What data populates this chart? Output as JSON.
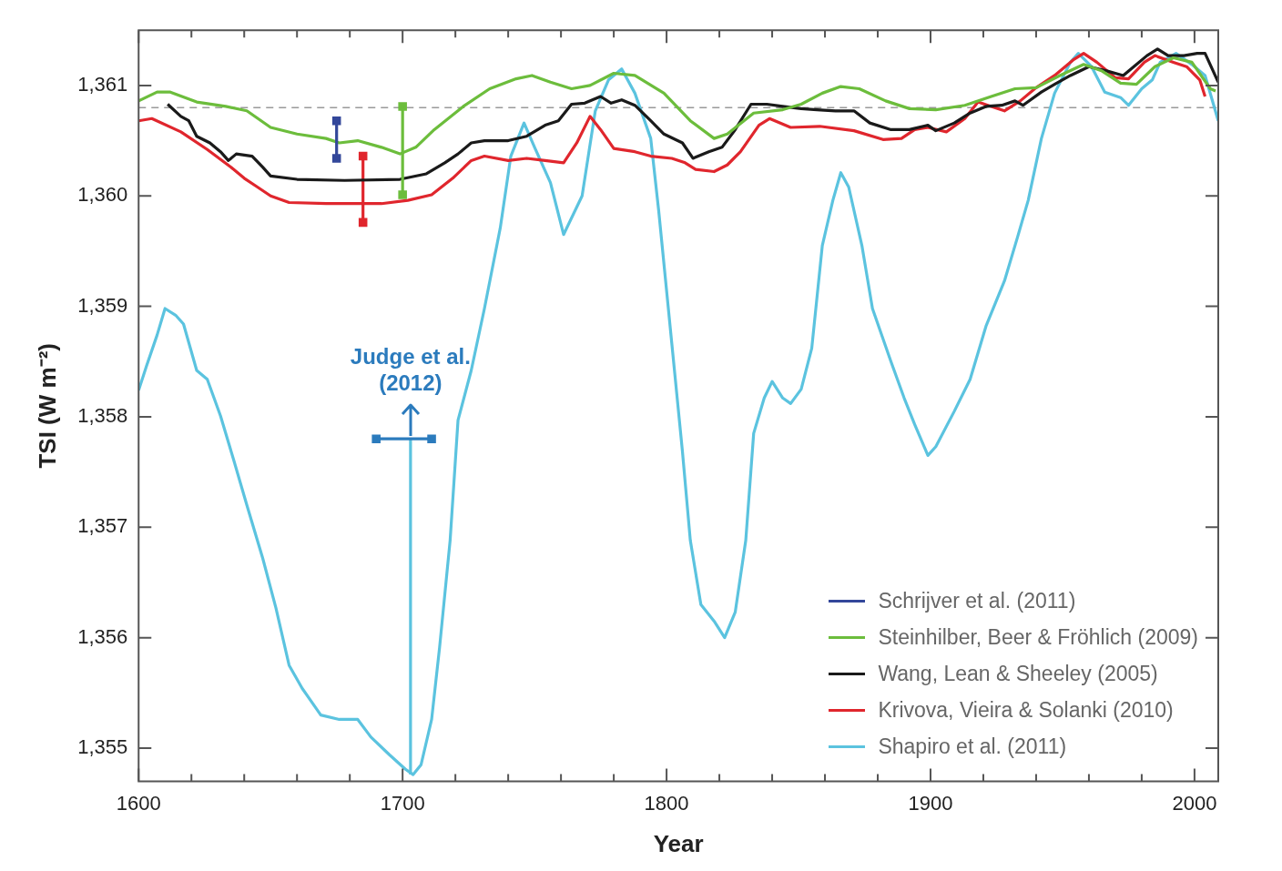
{
  "chart_data": {
    "type": "line",
    "xlabel": "Year",
    "ylabel": "TSI (W m⁻²)",
    "xlim": [
      1600,
      2009
    ],
    "ylim": [
      1354.7,
      1361.5
    ],
    "xticks": [
      1600,
      {
        "value": 1620,
        "label": null
      },
      {
        "value": 1640,
        "label": null
      },
      {
        "value": 1660,
        "label": null
      },
      {
        "value": 1680,
        "label": null
      },
      1700,
      {
        "value": 1720,
        "label": null
      },
      {
        "value": 1740,
        "label": null
      },
      {
        "value": 1760,
        "label": null
      },
      {
        "value": 1780,
        "label": null
      },
      1800,
      {
        "value": 1820,
        "label": null
      },
      {
        "value": 1840,
        "label": null
      },
      {
        "value": 1860,
        "label": null
      },
      {
        "value": 1880,
        "label": null
      },
      1900,
      {
        "value": 1920,
        "label": null
      },
      {
        "value": 1940,
        "label": null
      },
      {
        "value": 1960,
        "label": null
      },
      {
        "value": 1980,
        "label": null
      },
      2000
    ],
    "yticks": [
      {
        "value": 1355,
        "label": "1,355"
      },
      {
        "value": 1356,
        "label": "1,356"
      },
      {
        "value": 1357,
        "label": "1,357"
      },
      {
        "value": 1358,
        "label": "1,358"
      },
      {
        "value": 1359,
        "label": "1,359"
      },
      {
        "value": 1360,
        "label": "1,360"
      },
      {
        "value": 1361,
        "label": "1,361"
      }
    ],
    "legend": "bottom right",
    "ref_lines": [
      {
        "axis": "y",
        "value": 1360.8,
        "color": "#999999",
        "line_style": "dashed"
      }
    ],
    "annotations": [
      {
        "text": "Judge et al. (2012)",
        "x": 1703,
        "y": 1357.8
      }
    ],
    "series": [
      {
        "name": "Schrijver et al. (2011)",
        "color": "#33479a",
        "marker": "square",
        "x": [
          1675,
          1675
        ],
        "values": [
          1360.34,
          1360.68
        ]
      },
      {
        "name": "Steinhilber, Beer & Fröhlich (2009)",
        "color": "#6cbd3c",
        "x": [
          1600,
          1607,
          1612,
          1622,
          1633,
          1641,
          1650,
          1660,
          1671,
          1676,
          1683,
          1692,
          1699,
          1705,
          1712,
          1723,
          1733,
          1743,
          1749,
          1756,
          1764,
          1771,
          1780,
          1788,
          1799,
          1809,
          1818,
          1823,
          1833,
          1844,
          1851,
          1859,
          1866,
          1873,
          1883,
          1892,
          1902,
          1913,
          1923,
          1932,
          1940,
          1949,
          1958,
          1965,
          1972,
          1978,
          1985,
          1992,
          1999,
          2006,
          2008
        ],
        "values": [
          1360.86,
          1360.94,
          1360.94,
          1360.85,
          1360.81,
          1360.77,
          1360.62,
          1360.56,
          1360.52,
          1360.48,
          1360.5,
          1360.44,
          1360.38,
          1360.44,
          1360.6,
          1360.81,
          1360.97,
          1361.06,
          1361.09,
          1361.03,
          1360.97,
          1361.0,
          1361.11,
          1361.09,
          1360.93,
          1360.68,
          1360.52,
          1360.56,
          1360.75,
          1360.78,
          1360.83,
          1360.93,
          1360.99,
          1360.97,
          1360.86,
          1360.79,
          1360.78,
          1360.82,
          1360.9,
          1360.97,
          1360.98,
          1361.09,
          1361.19,
          1361.13,
          1361.02,
          1361.01,
          1361.17,
          1361.25,
          1361.21,
          1360.97,
          1360.95
        ]
      },
      {
        "color": "#6cbd3c",
        "marker": "square",
        "x": [
          1700,
          1700
        ],
        "values": [
          1360.01,
          1360.81
        ]
      },
      {
        "name": "Wang, Lean & Sheeley (2005)",
        "color": "#1a1a1a",
        "x": [
          1611,
          1616,
          1619,
          1622,
          1627,
          1631,
          1634,
          1637,
          1643,
          1647,
          1650,
          1660,
          1678,
          1699,
          1709,
          1716,
          1721,
          1726,
          1731,
          1740,
          1747,
          1754,
          1759,
          1764,
          1769,
          1775,
          1779,
          1783,
          1788,
          1794,
          1799,
          1806,
          1810,
          1816,
          1821,
          1826,
          1832,
          1838,
          1844,
          1851,
          1857,
          1864,
          1871,
          1877,
          1885,
          1892,
          1899,
          1902,
          1909,
          1915,
          1921,
          1927,
          1932,
          1935,
          1942,
          1947,
          1953,
          1960,
          1967,
          1973,
          1977,
          1982,
          1986,
          1990,
          1996,
          2001,
          2004,
          2009
        ],
        "values": [
          1360.83,
          1360.72,
          1360.68,
          1360.54,
          1360.48,
          1360.4,
          1360.32,
          1360.38,
          1360.36,
          1360.26,
          1360.18,
          1360.15,
          1360.14,
          1360.15,
          1360.2,
          1360.3,
          1360.38,
          1360.48,
          1360.5,
          1360.5,
          1360.54,
          1360.64,
          1360.68,
          1360.83,
          1360.84,
          1360.9,
          1360.84,
          1360.87,
          1360.82,
          1360.68,
          1360.56,
          1360.48,
          1360.34,
          1360.4,
          1360.44,
          1360.6,
          1360.83,
          1360.83,
          1360.81,
          1360.79,
          1360.78,
          1360.77,
          1360.77,
          1360.66,
          1360.6,
          1360.6,
          1360.64,
          1360.59,
          1360.66,
          1360.75,
          1360.81,
          1360.82,
          1360.86,
          1360.82,
          1360.94,
          1361.01,
          1361.09,
          1361.17,
          1361.13,
          1361.09,
          1361.17,
          1361.27,
          1361.33,
          1361.27,
          1361.27,
          1361.29,
          1361.29,
          1361.03
        ]
      },
      {
        "name": "Krivova, Vieira & Solanki (2010)",
        "color": "#e0262d",
        "x": [
          1600,
          1605,
          1616,
          1626,
          1635,
          1640,
          1645,
          1650,
          1657,
          1671,
          1692,
          1702,
          1711,
          1719,
          1726,
          1731,
          1740,
          1747,
          1754,
          1761,
          1766,
          1771,
          1775,
          1780,
          1788,
          1794,
          1802,
          1807,
          1811,
          1818,
          1823,
          1828,
          1835,
          1839,
          1847,
          1858,
          1871,
          1882,
          1889,
          1894,
          1899,
          1906,
          1913,
          1918,
          1923,
          1928,
          1934,
          1940,
          1947,
          1954,
          1958,
          1963,
          1970,
          1975,
          1981,
          1985,
          1992,
          1997,
          2002,
          2004
        ],
        "values": [
          1360.68,
          1360.7,
          1360.58,
          1360.42,
          1360.26,
          1360.16,
          1360.08,
          1360.0,
          1359.94,
          1359.93,
          1359.93,
          1359.96,
          1360.01,
          1360.16,
          1360.32,
          1360.36,
          1360.32,
          1360.34,
          1360.32,
          1360.3,
          1360.48,
          1360.72,
          1360.6,
          1360.43,
          1360.4,
          1360.36,
          1360.34,
          1360.3,
          1360.24,
          1360.22,
          1360.28,
          1360.4,
          1360.64,
          1360.7,
          1360.62,
          1360.63,
          1360.59,
          1360.51,
          1360.52,
          1360.6,
          1360.62,
          1360.58,
          1360.7,
          1360.85,
          1360.81,
          1360.77,
          1360.86,
          1360.98,
          1361.09,
          1361.23,
          1361.29,
          1361.21,
          1361.07,
          1361.06,
          1361.21,
          1361.27,
          1361.21,
          1361.17,
          1361.05,
          1360.9
        ]
      },
      {
        "color": "#e0262d",
        "marker": "square",
        "x": [
          1685,
          1685
        ],
        "values": [
          1359.76,
          1360.36
        ]
      },
      {
        "name": "Shapiro et al. (2011)",
        "color": "#5bc3df",
        "x": [
          1600,
          1603,
          1607,
          1610,
          1614,
          1617,
          1622,
          1626,
          1631,
          1636,
          1641,
          1647,
          1652,
          1657,
          1662,
          1669,
          1676,
          1683,
          1688,
          1695,
          1701,
          1704,
          1707,
          1711,
          1714,
          1718,
          1721,
          1726,
          1731,
          1737,
          1741,
          1746,
          1750,
          1756,
          1761,
          1768,
          1773,
          1778,
          1783,
          1788,
          1794,
          1797,
          1802,
          1806,
          1809,
          1813,
          1818,
          1822,
          1826,
          1830,
          1833,
          1837,
          1840,
          1844,
          1847,
          1851,
          1855,
          1859,
          1863,
          1866,
          1869,
          1874,
          1878,
          1885,
          1890,
          1894,
          1899,
          1902,
          1909,
          1915,
          1921,
          1928,
          1933,
          1937,
          1942,
          1947,
          1953,
          1956,
          1961,
          1966,
          1972,
          1975,
          1980,
          1984,
          1987,
          1993,
          1999,
          2004,
          2009
        ],
        "values": [
          1358.24,
          1358.46,
          1358.74,
          1358.98,
          1358.92,
          1358.84,
          1358.42,
          1358.34,
          1358.01,
          1357.61,
          1357.2,
          1356.72,
          1356.27,
          1355.75,
          1355.54,
          1355.3,
          1355.26,
          1355.26,
          1355.1,
          1354.94,
          1354.81,
          1354.76,
          1354.85,
          1355.26,
          1355.91,
          1356.88,
          1357.97,
          1358.42,
          1358.98,
          1359.71,
          1360.36,
          1360.66,
          1360.44,
          1360.12,
          1359.65,
          1360.0,
          1360.77,
          1361.05,
          1361.15,
          1360.93,
          1360.52,
          1359.87,
          1358.66,
          1357.69,
          1356.88,
          1356.3,
          1356.15,
          1356.0,
          1356.23,
          1356.88,
          1357.85,
          1358.17,
          1358.32,
          1358.17,
          1358.12,
          1358.25,
          1358.62,
          1359.55,
          1359.96,
          1360.21,
          1360.08,
          1359.55,
          1358.98,
          1358.5,
          1358.17,
          1357.93,
          1357.65,
          1357.73,
          1358.05,
          1358.34,
          1358.82,
          1359.23,
          1359.63,
          1359.96,
          1360.52,
          1360.93,
          1361.21,
          1361.29,
          1361.17,
          1360.94,
          1360.89,
          1360.82,
          1360.97,
          1361.05,
          1361.21,
          1361.29,
          1361.19,
          1361.09,
          1360.68
        ]
      },
      {
        "color": "#2b7bbd",
        "marker": "square",
        "x": [
          1690,
          1711
        ],
        "values": [
          1357.8,
          1357.8
        ]
      },
      {
        "color": "#5bc3df",
        "x": [
          1703,
          1703
        ],
        "values": [
          1354.76,
          1357.8
        ]
      }
    ]
  }
}
